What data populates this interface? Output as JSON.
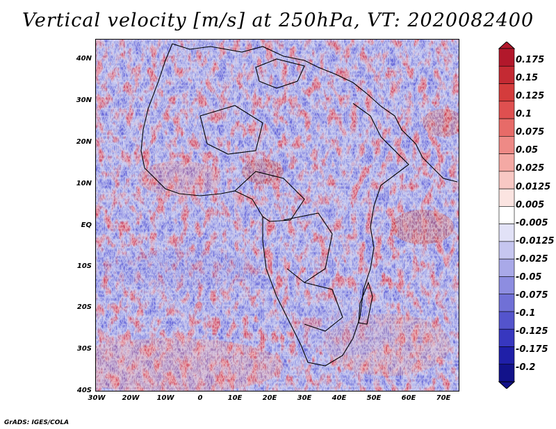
{
  "title": "Vertical velocity [m/s] at 250hPa, VT: 2020082400",
  "footer": "GrADS: IGES/COLA",
  "axes": {
    "lat_labels": [
      "40N",
      "30N",
      "20N",
      "10N",
      "EQ",
      "10S",
      "20S",
      "30S",
      "40S"
    ],
    "lon_labels": [
      "30W",
      "20W",
      "10W",
      "0",
      "10E",
      "20E",
      "30E",
      "40E",
      "50E",
      "60E",
      "70E"
    ]
  },
  "colorbar": {
    "labels": [
      "0.175",
      "0.15",
      "0.125",
      "0.1",
      "0.075",
      "0.05",
      "0.025",
      "0.0125",
      "0.005",
      "-0.005",
      "-0.0125",
      "-0.025",
      "-0.05",
      "-0.075",
      "-0.1",
      "-0.125",
      "-0.175",
      "-0.2"
    ],
    "colors": [
      "#b2182b",
      "#c42a33",
      "#d43c3c",
      "#df5050",
      "#e76b68",
      "#ee8a86",
      "#f4a9a4",
      "#f8c8c4",
      "#fbe4e1",
      "#ffffff",
      "#e2e2f7",
      "#c6c6f0",
      "#a9a9e8",
      "#8d8de0",
      "#7070d6",
      "#5454cc",
      "#3737bf",
      "#1f1fa8",
      "#12128a"
    ]
  },
  "chart_data": {
    "type": "heatmap",
    "title": "Vertical velocity [m/s] at 250hPa, VT: 2020082400",
    "variable": "Vertical velocity",
    "units": "m/s",
    "level": "250hPa",
    "valid_time": "2020082400",
    "x_range": [
      -30,
      75
    ],
    "y_range": [
      -40,
      45
    ],
    "levels": [
      -0.2,
      -0.175,
      -0.125,
      -0.1,
      -0.075,
      -0.05,
      -0.025,
      -0.0125,
      -0.005,
      0.005,
      0.0125,
      0.025,
      0.05,
      0.075,
      0.1,
      0.125,
      0.15,
      0.175
    ]
  }
}
